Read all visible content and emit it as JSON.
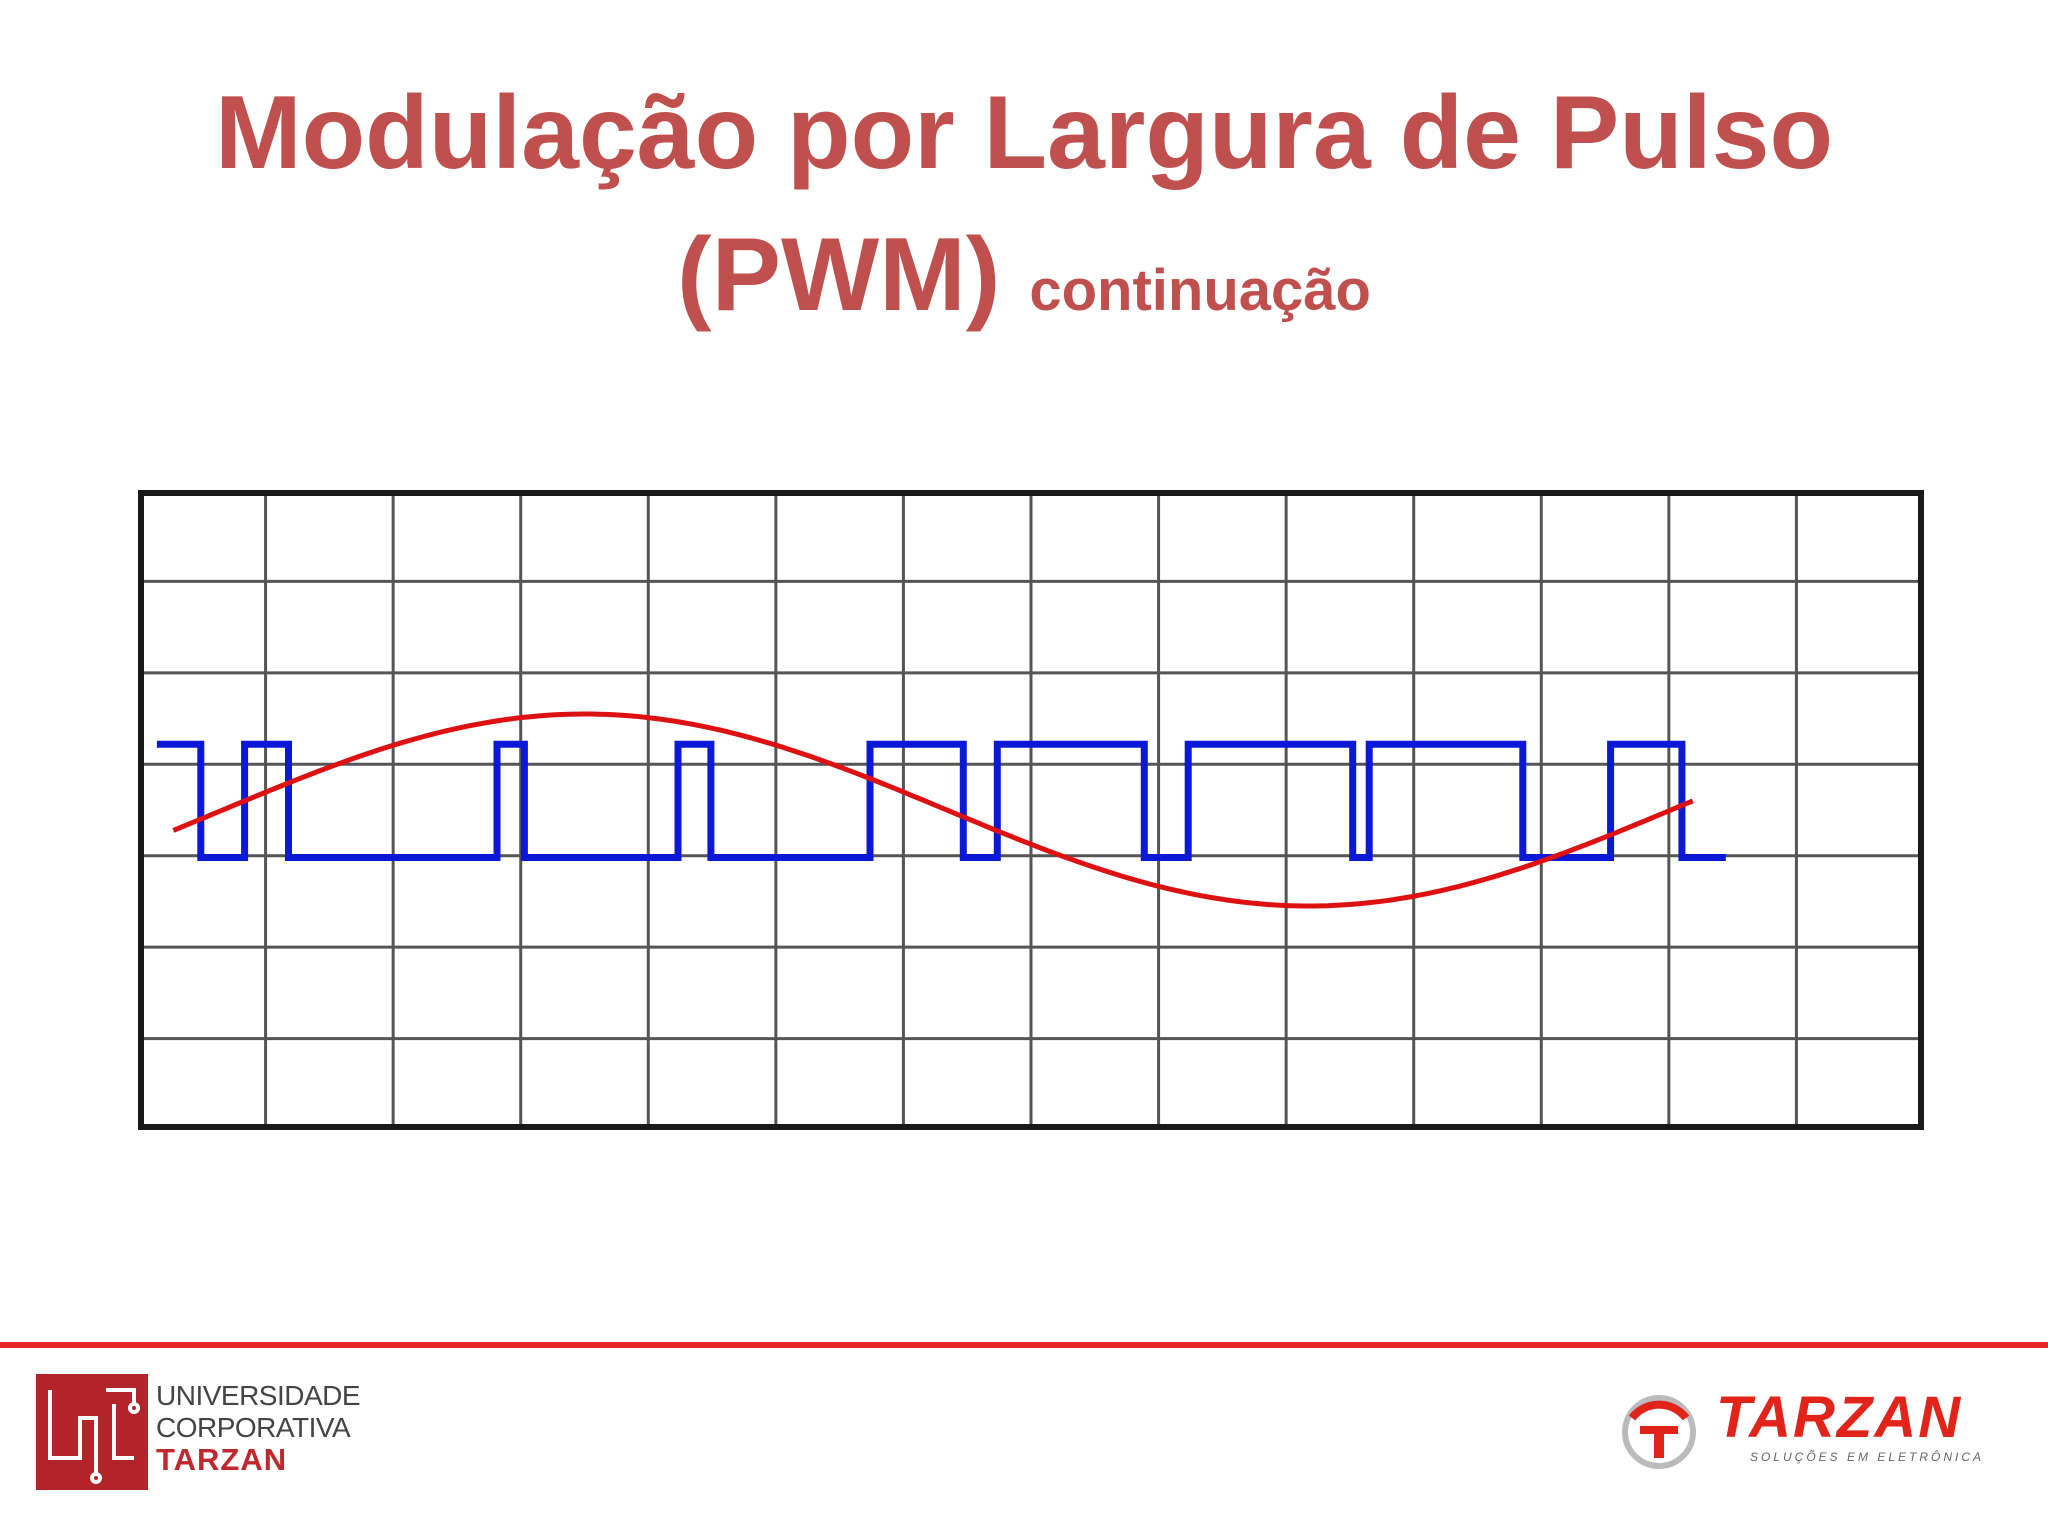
{
  "title": {
    "line1": "Modulação por Largura de Pulso",
    "line2_main": "(PWM)",
    "line2_suffix": "continuação"
  },
  "figure": {
    "grid_columns": 14,
    "grid_rows": 7,
    "colors": {
      "grid": "#555555",
      "frame": "#1a1a1a",
      "sine": "#dd1111",
      "pwm": "#0b18d6"
    },
    "pwm_levels": {
      "high": 0.36,
      "low": -0.26
    },
    "pwm_edges": [
      -0.3,
      0.1,
      0.5,
      2.4,
      2.65,
      4.05,
      4.35,
      5.8,
      6.65,
      6.96,
      8.3,
      8.7,
      10.2,
      10.35,
      11.75,
      12.55,
      13.2
    ],
    "pwm_start_high": true,
    "pwm_range": [
      -0.7,
      13.6
    ],
    "sine": {
      "x_start": -0.55,
      "x_end": 13.3,
      "center_x": 6.5,
      "center_y": 0.0,
      "amplitude": 1.05,
      "half_period": 6.6
    }
  },
  "footer": {
    "university": {
      "line1": "UNIVERSIDADE",
      "line2": "CORPORATIVA",
      "line3": "TARZAN"
    },
    "company": {
      "name": "TARZAN",
      "tagline": "SOLUÇÕES EM ELETRÔNICA"
    },
    "accent_color": "#e8262a"
  }
}
